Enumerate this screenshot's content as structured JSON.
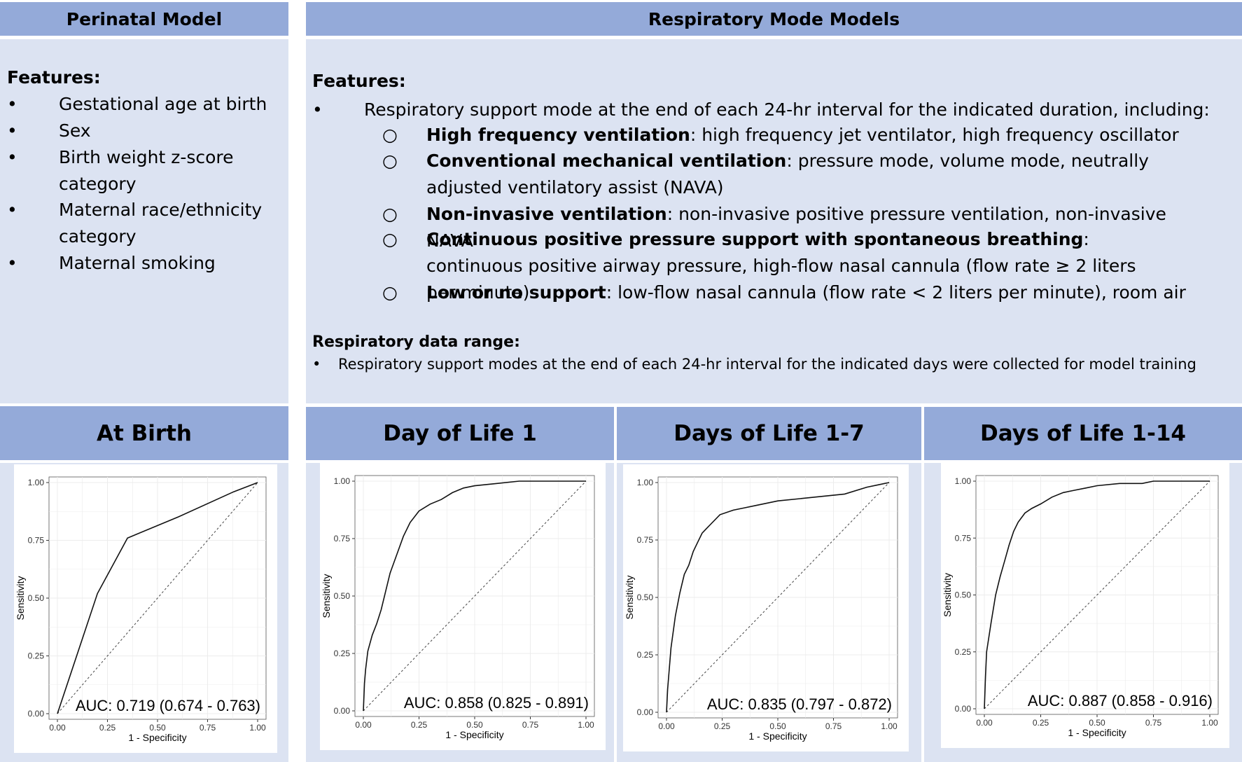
{
  "left_header": "Perinatal Model",
  "right_header": "Respiratory Mode Models",
  "perinatal": {
    "features_title": "Features:",
    "features": [
      [
        "Gestational age at birth"
      ],
      [
        "Sex"
      ],
      [
        "Birth weight z-score",
        "category"
      ],
      [
        "Maternal race/ethnicity",
        "category"
      ],
      [
        "Maternal smoking"
      ]
    ]
  },
  "respiratory": {
    "features_title": "Features:",
    "main_bullet": "Respiratory support mode at the end of each 24-hr interval for the indicated duration, including:",
    "modes": [
      {
        "name": "High frequency ventilation",
        "desc": ": high frequency jet ventilator, high frequency oscillator"
      },
      {
        "name": "Conventional mechanical ventilation",
        "desc": ": pressure mode, volume mode, neutrally adjusted ventilatory assist (NAVA)"
      },
      {
        "name": "Non-invasive ventilation",
        "desc": ": non-invasive positive pressure ventilation, non-invasive NAVA"
      },
      {
        "name": "Continuous positive pressure support with spontaneous breathing",
        "desc": ": continuous positive airway pressure, high-flow nasal cannula (flow rate ≥ 2 liters per minute)"
      },
      {
        "name": "Low or no support",
        "desc": ": low-flow nasal cannula (flow rate < 2 liters per minute), room air"
      }
    ],
    "range_title": "Respiratory data range:",
    "range_bullet": "Respiratory support modes at the end of each 24-hr interval for the indicated days were collected for model training"
  },
  "chart_data": [
    {
      "type": "line",
      "title": "At Birth",
      "xlabel": "1 - Specificity",
      "ylabel": "Sensitivity",
      "xlim": [
        0,
        1
      ],
      "ylim": [
        0,
        1
      ],
      "xticks": [
        "0.00",
        "0.25",
        "0.50",
        "0.75",
        "1.00"
      ],
      "yticks": [
        "0.00",
        "0.25",
        "0.50",
        "0.75",
        "1.00"
      ],
      "annotation": "AUC: 0.719 (0.674 - 0.763)",
      "grid": true,
      "x": [
        0,
        0.2,
        0.35,
        0.6,
        0.88,
        1.0
      ],
      "y": [
        0,
        0.52,
        0.76,
        0.85,
        0.96,
        1.0
      ]
    },
    {
      "type": "line",
      "title": "Day of Life 1",
      "xlabel": "1 - Specificity",
      "ylabel": "Sensitivity",
      "xlim": [
        0,
        1
      ],
      "ylim": [
        0,
        1
      ],
      "xticks": [
        "0.00",
        "0.25",
        "0.50",
        "0.75",
        "1.00"
      ],
      "yticks": [
        "0.00",
        "0.25",
        "0.50",
        "0.75",
        "1.00"
      ],
      "annotation": "AUC: 0.858 (0.825 - 0.891)",
      "grid": true,
      "x": [
        0,
        0.005,
        0.01,
        0.02,
        0.04,
        0.06,
        0.08,
        0.1,
        0.12,
        0.15,
        0.18,
        0.21,
        0.25,
        0.3,
        0.35,
        0.4,
        0.45,
        0.5,
        0.6,
        0.7,
        0.8,
        0.9,
        1.0
      ],
      "y": [
        0,
        0.12,
        0.18,
        0.26,
        0.33,
        0.38,
        0.44,
        0.52,
        0.6,
        0.68,
        0.76,
        0.82,
        0.87,
        0.9,
        0.92,
        0.95,
        0.97,
        0.98,
        0.99,
        1.0,
        1.0,
        1.0,
        1.0
      ]
    },
    {
      "type": "line",
      "title": "Days of Life 1-7",
      "xlabel": "1 - Specificity",
      "ylabel": "Sensitivity",
      "xlim": [
        0,
        1
      ],
      "ylim": [
        0,
        1
      ],
      "xticks": [
        "0.00",
        "0.25",
        "0.50",
        "0.75",
        "1.00"
      ],
      "yticks": [
        "0.00",
        "0.25",
        "0.50",
        "0.75",
        "1.00"
      ],
      "annotation": "AUC: 0.835 (0.797 - 0.872)",
      "grid": true,
      "x": [
        0,
        0.005,
        0.02,
        0.04,
        0.06,
        0.08,
        0.1,
        0.12,
        0.14,
        0.16,
        0.18,
        0.2,
        0.24,
        0.3,
        0.35,
        0.4,
        0.5,
        0.6,
        0.7,
        0.8,
        0.9,
        0.95,
        1.0
      ],
      "y": [
        0,
        0.1,
        0.28,
        0.42,
        0.52,
        0.6,
        0.64,
        0.7,
        0.74,
        0.78,
        0.8,
        0.82,
        0.86,
        0.88,
        0.89,
        0.9,
        0.92,
        0.93,
        0.94,
        0.95,
        0.98,
        0.99,
        1.0
      ]
    },
    {
      "type": "line",
      "title": "Days of Life 1-14",
      "xlabel": "1 - Specificity",
      "ylabel": "Sensitivity",
      "xlim": [
        0,
        1
      ],
      "ylim": [
        0,
        1
      ],
      "xticks": [
        "0.00",
        "0.25",
        "0.50",
        "0.75",
        "1.00"
      ],
      "yticks": [
        "0.00",
        "0.25",
        "0.50",
        "0.75",
        "1.00"
      ],
      "annotation": "AUC: 0.887 (0.858 - 0.916)",
      "grid": true,
      "x": [
        0,
        0.005,
        0.01,
        0.03,
        0.05,
        0.07,
        0.09,
        0.11,
        0.13,
        0.15,
        0.18,
        0.21,
        0.25,
        0.3,
        0.35,
        0.4,
        0.45,
        0.5,
        0.6,
        0.7,
        0.75,
        0.85,
        1.0
      ],
      "y": [
        0,
        0.14,
        0.25,
        0.38,
        0.5,
        0.58,
        0.65,
        0.72,
        0.78,
        0.82,
        0.86,
        0.88,
        0.9,
        0.93,
        0.95,
        0.96,
        0.97,
        0.98,
        0.99,
        0.99,
        1.0,
        1.0,
        1.0
      ]
    }
  ]
}
